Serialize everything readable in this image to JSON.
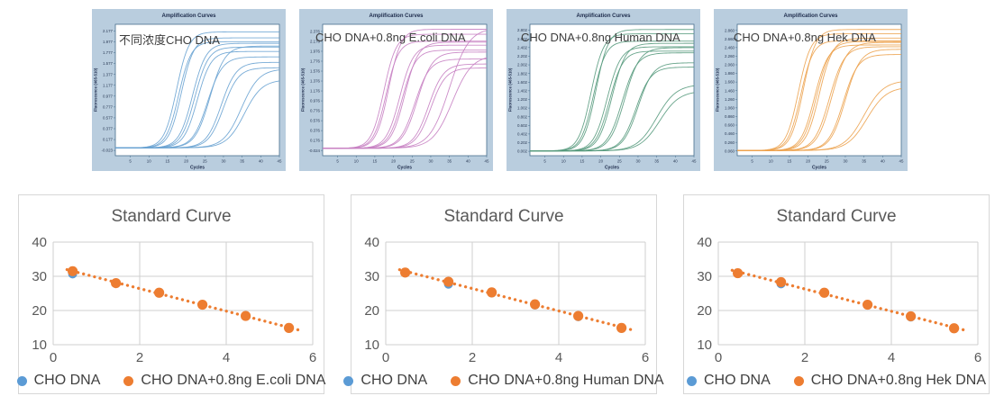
{
  "accent_colors": {
    "blue": "#5B9BD5",
    "orange": "#ED7D31",
    "grid": "#cfcfcf",
    "text_gray": "#595959"
  },
  "chart_data": [
    {
      "type": "line",
      "title": "Amplification Curves",
      "annotation": "不同浓度CHO DNA",
      "xlabel": "Cycles",
      "ylabel": "Fluorescence (465-510)",
      "color": "#68a2d1",
      "frame_color": "#476e8c",
      "panel_bg": "#b9cdde",
      "xlim": [
        1,
        45
      ],
      "x_ticks": [
        5,
        10,
        15,
        20,
        25,
        30,
        35,
        40,
        45
      ],
      "y_tick_labels": [
        "2.177",
        "1.977",
        "1.777",
        "1.577",
        "1.377",
        "1.177",
        "0.977",
        "0.777",
        "0.577",
        "0.377",
        "0.177",
        "-0.023"
      ],
      "ylim": [
        -0.12,
        2.3
      ],
      "baseline": 0.025,
      "series": [
        {
          "midpoint": 17.4,
          "plateau": 2.16,
          "k": 0.6
        },
        {
          "midpoint": 18.0,
          "plateau": 1.98,
          "k": 0.6
        },
        {
          "midpoint": 18.7,
          "plateau": 2.05,
          "k": 0.6
        },
        {
          "midpoint": 21.7,
          "plateau": 1.95,
          "k": 0.55
        },
        {
          "midpoint": 22.3,
          "plateau": 1.88,
          "k": 0.55
        },
        {
          "midpoint": 23.0,
          "plateau": 1.8,
          "k": 0.55
        },
        {
          "midpoint": 25.7,
          "plateau": 1.7,
          "k": 0.5
        },
        {
          "midpoint": 26.4,
          "plateau": 1.9,
          "k": 0.5
        },
        {
          "midpoint": 29.4,
          "plateau": 1.6,
          "k": 0.5
        },
        {
          "midpoint": 30.0,
          "plateau": 1.5,
          "k": 0.5
        },
        {
          "midpoint": 34.8,
          "plateau": 1.48,
          "k": 0.42
        },
        {
          "midpoint": 35.6,
          "plateau": 1.28,
          "k": 0.42
        }
      ]
    },
    {
      "type": "line",
      "title": "Amplification Curves",
      "annotation": "CHO DNA+0.8ng E.coli DNA",
      "xlabel": "Cycles",
      "ylabel": "Fluorescence (465-510)",
      "color": "#c77fc2",
      "frame_color": "#476e8c",
      "panel_bg": "#b9cdde",
      "xlim": [
        1,
        45
      ],
      "x_ticks": [
        5,
        10,
        15,
        20,
        25,
        30,
        35,
        40,
        45
      ],
      "y_tick_labels": [
        "2.376",
        "2.176",
        "1.976",
        "1.776",
        "1.576",
        "1.376",
        "1.176",
        "0.976",
        "0.776",
        "0.576",
        "0.376",
        "0.176",
        "-0.024"
      ],
      "ylim": [
        -0.13,
        2.52
      ],
      "baseline": 0.02,
      "series": [
        {
          "midpoint": 17.4,
          "plateau": 2.32,
          "k": 0.6
        },
        {
          "midpoint": 18.0,
          "plateau": 2.18,
          "k": 0.6
        },
        {
          "midpoint": 18.7,
          "plateau": 2.42,
          "k": 0.6
        },
        {
          "midpoint": 21.7,
          "plateau": 2.1,
          "k": 0.55
        },
        {
          "midpoint": 22.3,
          "plateau": 2.0,
          "k": 0.55
        },
        {
          "midpoint": 23.0,
          "plateau": 2.16,
          "k": 0.55
        },
        {
          "midpoint": 25.7,
          "plateau": 1.82,
          "k": 0.5
        },
        {
          "midpoint": 26.4,
          "plateau": 1.96,
          "k": 0.5
        },
        {
          "midpoint": 29.4,
          "plateau": 1.72,
          "k": 0.5
        },
        {
          "midpoint": 30.0,
          "plateau": 1.64,
          "k": 0.5
        },
        {
          "midpoint": 35.0,
          "plateau": 2.45,
          "k": 0.38
        },
        {
          "midpoint": 35.8,
          "plateau": 1.9,
          "k": 0.38
        }
      ]
    },
    {
      "type": "line",
      "title": "Amplification Curves",
      "annotation": "CHO DNA+0.8ng Human DNA",
      "xlabel": "Cycles",
      "ylabel": "Fluorescence (465-510)",
      "color": "#569a7d",
      "frame_color": "#476e8c",
      "panel_bg": "#b9cdde",
      "xlim": [
        1,
        45
      ],
      "x_ticks": [
        5,
        10,
        15,
        20,
        25,
        30,
        35,
        40,
        45
      ],
      "y_tick_labels": [
        "2.802",
        "2.602",
        "2.402",
        "2.202",
        "2.002",
        "1.802",
        "1.602",
        "1.402",
        "1.202",
        "1.002",
        "0.802",
        "0.602",
        "0.402",
        "0.202",
        "0.002"
      ],
      "ylim": [
        -0.1,
        2.94
      ],
      "baseline": 0.01,
      "series": [
        {
          "midpoint": 17.4,
          "plateau": 2.72,
          "k": 0.6
        },
        {
          "midpoint": 18.0,
          "plateau": 2.55,
          "k": 0.6
        },
        {
          "midpoint": 18.7,
          "plateau": 2.82,
          "k": 0.6
        },
        {
          "midpoint": 21.7,
          "plateau": 2.42,
          "k": 0.55
        },
        {
          "midpoint": 22.3,
          "plateau": 2.32,
          "k": 0.55
        },
        {
          "midpoint": 23.0,
          "plateau": 2.5,
          "k": 0.55
        },
        {
          "midpoint": 25.7,
          "plateau": 2.28,
          "k": 0.5
        },
        {
          "midpoint": 26.4,
          "plateau": 2.4,
          "k": 0.5
        },
        {
          "midpoint": 29.4,
          "plateau": 1.95,
          "k": 0.5
        },
        {
          "midpoint": 30.0,
          "plateau": 2.05,
          "k": 0.5
        },
        {
          "midpoint": 35.0,
          "plateau": 1.55,
          "k": 0.38
        },
        {
          "midpoint": 35.8,
          "plateau": 1.4,
          "k": 0.38
        }
      ]
    },
    {
      "type": "line",
      "title": "Amplification Curves",
      "annotation": "CHO DNA+0.8ng Hek DNA",
      "xlabel": "Cycles",
      "ylabel": "Fluorescence (465-510)",
      "color": "#eca24e",
      "frame_color": "#476e8c",
      "panel_bg": "#b9cdde",
      "xlim": [
        1,
        45
      ],
      "x_ticks": [
        5,
        10,
        15,
        20,
        25,
        30,
        35,
        40,
        45
      ],
      "y_tick_labels": [
        "2.860",
        "2.660",
        "2.460",
        "2.260",
        "2.060",
        "1.860",
        "1.660",
        "1.460",
        "1.260",
        "1.060",
        "0.860",
        "0.660",
        "0.460",
        "0.260",
        "0.060"
      ],
      "ylim": [
        -0.05,
        3.0
      ],
      "baseline": 0.07,
      "series": [
        {
          "midpoint": 17.4,
          "plateau": 2.78,
          "k": 0.6
        },
        {
          "midpoint": 18.0,
          "plateau": 2.62,
          "k": 0.6
        },
        {
          "midpoint": 18.7,
          "plateau": 2.88,
          "k": 0.6
        },
        {
          "midpoint": 21.7,
          "plateau": 2.52,
          "k": 0.55
        },
        {
          "midpoint": 22.3,
          "plateau": 2.6,
          "k": 0.55
        },
        {
          "midpoint": 23.0,
          "plateau": 2.68,
          "k": 0.55
        },
        {
          "midpoint": 25.7,
          "plateau": 2.48,
          "k": 0.5
        },
        {
          "midpoint": 26.4,
          "plateau": 2.58,
          "k": 0.5
        },
        {
          "midpoint": 29.4,
          "plateau": 2.3,
          "k": 0.5
        },
        {
          "midpoint": 30.0,
          "plateau": 2.42,
          "k": 0.5
        },
        {
          "midpoint": 35.0,
          "plateau": 1.7,
          "k": 0.38
        },
        {
          "midpoint": 35.8,
          "plateau": 1.55,
          "k": 0.38
        }
      ]
    },
    {
      "type": "scatter",
      "title": "Standard Curve",
      "xlim": [
        0,
        6
      ],
      "ylim": [
        10,
        40
      ],
      "x_ticks": [
        0,
        2,
        4,
        6
      ],
      "y_ticks": [
        10,
        20,
        30,
        40
      ],
      "grid": true,
      "legend_position": "bottom",
      "series": [
        {
          "name": "CHO DNA",
          "color": "#5B9BD5",
          "points": [
            [
              0.45,
              30.7
            ],
            [
              1.45,
              27.9
            ],
            [
              2.45,
              25.1
            ],
            [
              3.45,
              21.6
            ],
            [
              4.45,
              18.3
            ],
            [
              5.45,
              14.8
            ]
          ]
        },
        {
          "name": "CHO DNA+0.8ng E.coli DNA",
          "color": "#ED7D31",
          "trendline": "dotted",
          "points": [
            [
              0.45,
              31.5
            ],
            [
              1.45,
              28.0
            ],
            [
              2.45,
              25.2
            ],
            [
              3.45,
              21.7
            ],
            [
              4.45,
              18.4
            ],
            [
              5.45,
              14.9
            ]
          ]
        }
      ]
    },
    {
      "type": "scatter",
      "title": "Standard Curve",
      "xlim": [
        0,
        6
      ],
      "ylim": [
        10,
        40
      ],
      "x_ticks": [
        0,
        2,
        4,
        6
      ],
      "y_ticks": [
        10,
        20,
        30,
        40
      ],
      "grid": true,
      "legend_position": "bottom",
      "series": [
        {
          "name": "CHO DNA",
          "color": "#5B9BD5",
          "points": [
            [
              0.45,
              31.0
            ],
            [
              1.45,
              27.7
            ],
            [
              2.45,
              25.1
            ],
            [
              3.45,
              21.6
            ],
            [
              4.45,
              18.2
            ],
            [
              5.45,
              14.8
            ]
          ]
        },
        {
          "name": "CHO DNA+0.8ng Human DNA",
          "color": "#ED7D31",
          "trendline": "dotted",
          "points": [
            [
              0.45,
              31.1
            ],
            [
              1.45,
              28.4
            ],
            [
              2.45,
              25.3
            ],
            [
              3.45,
              21.8
            ],
            [
              4.45,
              18.4
            ],
            [
              5.45,
              14.9
            ]
          ]
        }
      ]
    },
    {
      "type": "scatter",
      "title": "Standard Curve",
      "xlim": [
        0,
        6
      ],
      "ylim": [
        10,
        40
      ],
      "x_ticks": [
        0,
        2,
        4,
        6
      ],
      "y_ticks": [
        10,
        20,
        30,
        40
      ],
      "grid": true,
      "legend_position": "bottom",
      "series": [
        {
          "name": "CHO DNA",
          "color": "#5B9BD5",
          "points": [
            [
              0.45,
              30.8
            ],
            [
              1.45,
              27.8
            ],
            [
              2.45,
              25.1
            ],
            [
              3.45,
              21.6
            ],
            [
              4.45,
              18.1
            ],
            [
              5.45,
              14.8
            ]
          ]
        },
        {
          "name": "CHO DNA+0.8ng Hek DNA",
          "color": "#ED7D31",
          "trendline": "dotted",
          "points": [
            [
              0.45,
              30.9
            ],
            [
              1.45,
              28.3
            ],
            [
              2.45,
              25.2
            ],
            [
              3.45,
              21.7
            ],
            [
              4.45,
              18.3
            ],
            [
              5.45,
              14.8
            ]
          ]
        }
      ]
    }
  ]
}
